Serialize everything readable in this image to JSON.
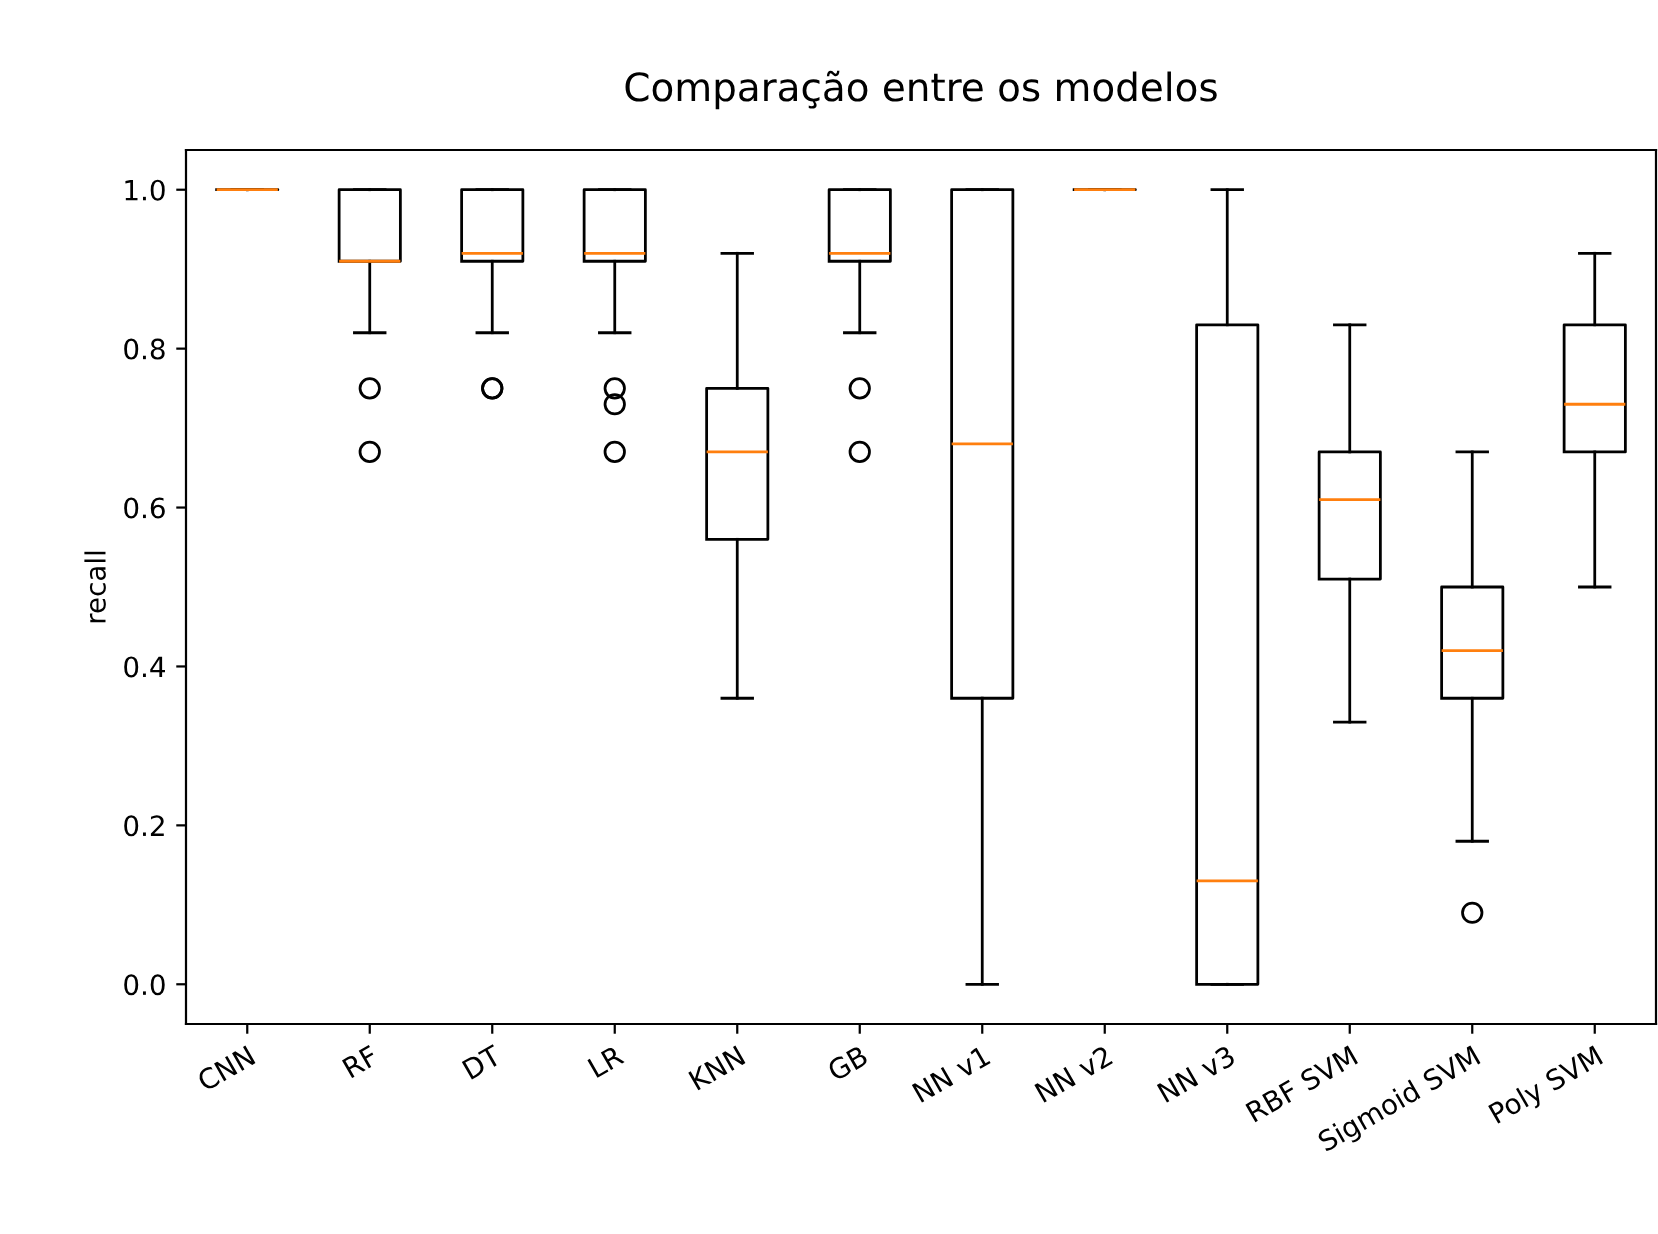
{
  "chart_data": {
    "type": "box",
    "title": "Comparação entre os modelos",
    "ylabel": "recall",
    "categories": [
      "CNN",
      "RF",
      "DT",
      "LR",
      "KNN",
      "GB",
      "NN v1",
      "NN v2",
      "NN v3",
      "RBF SVM",
      "Sigmoid SVM",
      "Poly SVM"
    ],
    "boxes": [
      {
        "low": 1.0,
        "q1": 1.0,
        "median": 1.0,
        "q3": 1.0,
        "high": 1.0
      },
      {
        "low": 0.82,
        "q1": 0.91,
        "median": 0.91,
        "q3": 1.0,
        "high": 1.0,
        "outliers": [
          0.75,
          0.67
        ]
      },
      {
        "low": 0.82,
        "q1": 0.91,
        "median": 0.92,
        "q3": 1.0,
        "high": 1.0,
        "outliers": [
          0.75,
          0.75
        ]
      },
      {
        "low": 0.82,
        "q1": 0.91,
        "median": 0.92,
        "q3": 1.0,
        "high": 1.0,
        "outliers": [
          0.75,
          0.73,
          0.67
        ]
      },
      {
        "low": 0.36,
        "q1": 0.56,
        "median": 0.67,
        "q3": 0.75,
        "high": 0.92
      },
      {
        "low": 0.82,
        "q1": 0.91,
        "median": 0.92,
        "q3": 1.0,
        "high": 1.0,
        "outliers": [
          0.75,
          0.67
        ]
      },
      {
        "low": 0.0,
        "q1": 0.36,
        "median": 0.68,
        "q3": 1.0,
        "high": 1.0
      },
      {
        "low": 1.0,
        "q1": 1.0,
        "median": 1.0,
        "q3": 1.0,
        "high": 1.0
      },
      {
        "low": 0.0,
        "q1": 0.0,
        "median": 0.13,
        "q3": 0.83,
        "high": 1.0
      },
      {
        "low": 0.33,
        "q1": 0.51,
        "median": 0.61,
        "q3": 0.67,
        "high": 0.83
      },
      {
        "low": 0.18,
        "q1": 0.36,
        "median": 0.42,
        "q3": 0.5,
        "high": 0.67,
        "outliers": [
          0.09
        ]
      },
      {
        "low": 0.5,
        "q1": 0.67,
        "median": 0.73,
        "q3": 0.83,
        "high": 0.92
      }
    ],
    "ylim": [
      -0.05,
      1.05
    ],
    "yticks": [
      {
        "value": 0,
        "label": "0.0"
      },
      0.2,
      0.4,
      0.6,
      0.8,
      {
        "value": 1,
        "label": "1.0"
      }
    ],
    "grid": false,
    "legend": false
  }
}
